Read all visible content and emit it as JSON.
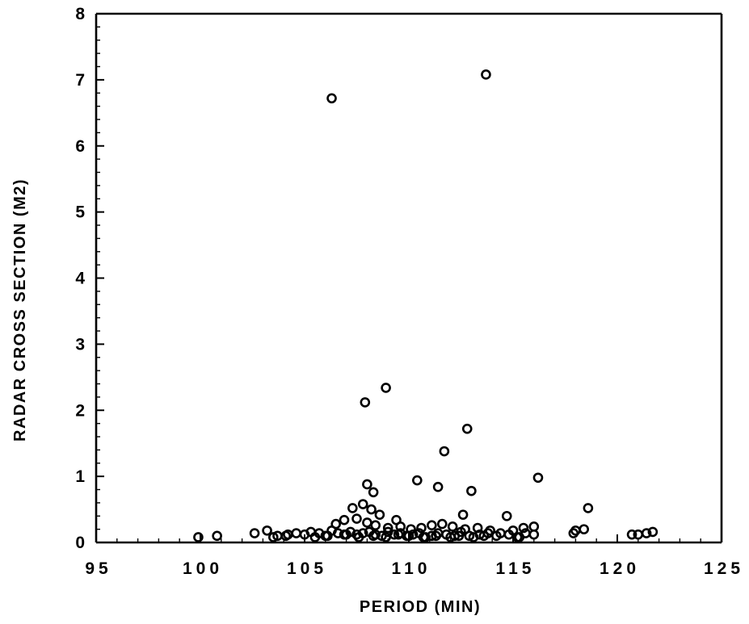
{
  "chart_data": {
    "type": "scatter",
    "title": "",
    "xlabel": "PERIOD  (MIN)",
    "ylabel": "RADAR  CROSS  SECTION  (M2)",
    "xlim": [
      95,
      125
    ],
    "ylim": [
      0,
      8
    ],
    "xticks": [
      95,
      100,
      105,
      110,
      115,
      120,
      125
    ],
    "yticks": [
      0,
      1,
      2,
      3,
      4,
      5,
      6,
      7,
      8
    ],
    "grid": false,
    "legend": "none",
    "marker": "open-circle",
    "series": [
      {
        "x": [
          106.3,
          113.7,
          107.9,
          108.9,
          112.8,
          111.7,
          116.2,
          110.4,
          111.4,
          113.0,
          108.0,
          108.3,
          107.8,
          108.2,
          108.6,
          118.6,
          114.7,
          112.6,
          109.4,
          107.3,
          106.9,
          106.5,
          107.5,
          108.0,
          108.4,
          109.0,
          109.6,
          110.1,
          110.6,
          111.1,
          111.6,
          112.1,
          112.7,
          113.3,
          113.9,
          114.4,
          115.0,
          115.5,
          116.0,
          99.9,
          100.8,
          102.6,
          103.2,
          103.7,
          104.2,
          104.6,
          105.0,
          105.3,
          105.7,
          106.0,
          106.3,
          106.6,
          106.9,
          107.2,
          107.5,
          107.8,
          108.1,
          108.4,
          108.7,
          109.0,
          109.3,
          109.6,
          109.9,
          110.2,
          110.5,
          110.8,
          111.1,
          111.4,
          111.8,
          112.2,
          112.5,
          112.9,
          113.4,
          113.8,
          114.2,
          114.8,
          115.2,
          115.6,
          116.0,
          118.0,
          118.4,
          121.0,
          121.4,
          121.7,
          103.5,
          104.1,
          105.5,
          106.1,
          107.0,
          107.6,
          108.3,
          108.9,
          109.5,
          110.0,
          110.7,
          111.3,
          112.0,
          112.4,
          113.1,
          113.6,
          115.3,
          117.9,
          120.7
        ],
        "y": [
          6.72,
          7.08,
          2.12,
          2.34,
          1.72,
          1.38,
          0.98,
          0.94,
          0.84,
          0.78,
          0.88,
          0.76,
          0.58,
          0.5,
          0.42,
          0.52,
          0.4,
          0.42,
          0.34,
          0.52,
          0.34,
          0.28,
          0.36,
          0.3,
          0.26,
          0.22,
          0.24,
          0.2,
          0.22,
          0.26,
          0.28,
          0.24,
          0.2,
          0.22,
          0.18,
          0.14,
          0.18,
          0.22,
          0.24,
          0.08,
          0.1,
          0.14,
          0.18,
          0.1,
          0.12,
          0.14,
          0.12,
          0.16,
          0.14,
          0.1,
          0.18,
          0.14,
          0.12,
          0.16,
          0.12,
          0.14,
          0.16,
          0.12,
          0.1,
          0.16,
          0.12,
          0.14,
          0.1,
          0.12,
          0.14,
          0.08,
          0.1,
          0.14,
          0.12,
          0.1,
          0.16,
          0.1,
          0.12,
          0.14,
          0.1,
          0.12,
          0.08,
          0.14,
          0.12,
          0.18,
          0.2,
          0.12,
          0.14,
          0.16,
          0.08,
          0.1,
          0.08,
          0.1,
          0.12,
          0.08,
          0.1,
          0.08,
          0.12,
          0.1,
          0.08,
          0.1,
          0.08,
          0.1,
          0.08,
          0.1,
          0.08,
          0.14,
          0.12
        ]
      }
    ]
  }
}
